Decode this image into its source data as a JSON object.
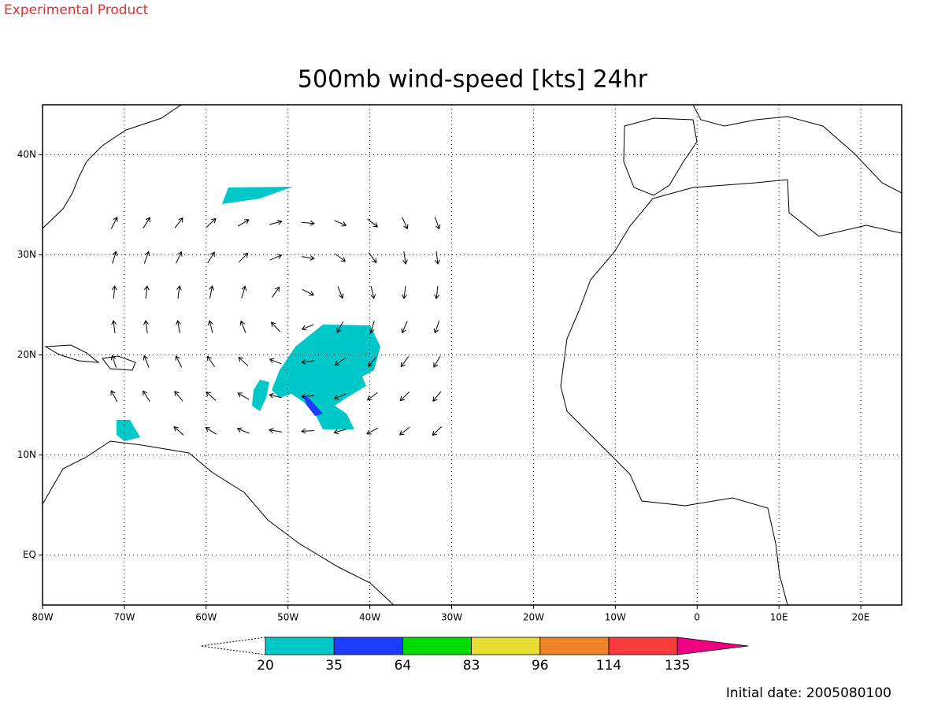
{
  "header": {
    "note": "Experimental Product"
  },
  "map": {
    "title": "500mb wind-speed [kts] 24hr",
    "xlim": [
      -80,
      25
    ],
    "ylim": [
      -5,
      45
    ],
    "xticks": [
      {
        "value": -80,
        "label": "80W"
      },
      {
        "value": -70,
        "label": "70W"
      },
      {
        "value": -60,
        "label": "60W"
      },
      {
        "value": -50,
        "label": "50W"
      },
      {
        "value": -40,
        "label": "40W"
      },
      {
        "value": -30,
        "label": "30W"
      },
      {
        "value": -20,
        "label": "20W"
      },
      {
        "value": -10,
        "label": "10W"
      },
      0,
      {
        "value": 10,
        "label": "10E"
      },
      {
        "value": 20,
        "label": "20E"
      }
    ],
    "yticks": [
      {
        "value": 0,
        "label": "EQ"
      },
      {
        "value": 10,
        "label": "10N"
      },
      {
        "value": 20,
        "label": "20N"
      },
      {
        "value": 30,
        "label": "30N"
      },
      {
        "value": 40,
        "label": "40N"
      }
    ],
    "grid": true
  },
  "colorbar": {
    "levels": [
      20,
      35,
      64,
      83,
      96,
      114,
      135
    ],
    "colors": [
      "#00c8c8",
      "#1e3cff",
      "#00dc00",
      "#e6dc32",
      "#f08228",
      "#fa3c3c",
      "#f00082"
    ]
  },
  "footer": "Initial date: 2005080100"
}
